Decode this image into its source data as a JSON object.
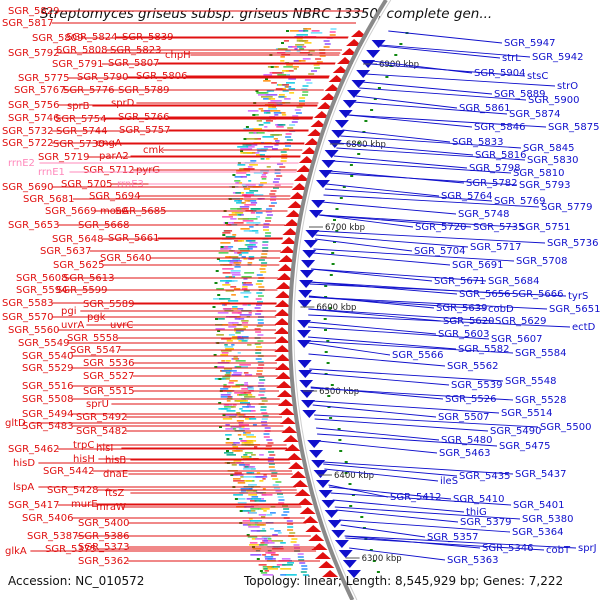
{
  "title": "Streptomyces griseus subsp. griseus NBRC 13350, complete gen...",
  "accession": "Accession: NC_010572",
  "topology": "Topology: linear; Length: 8,545,929 bp; Genes: 7,222",
  "colors": {
    "left": "#e01010",
    "right": "#1010cc",
    "rrna": "#ff88bb",
    "backbone": "#8a8a8a",
    "tick": "#118811"
  },
  "kbp_labels": [
    "6900 kbp",
    "6800 kbp",
    "6700 kbp",
    "6600 kbp",
    "6500 kbp",
    "6400 kbp",
    "6300 kbp"
  ],
  "left_labels": [
    [
      "SGR_5829",
      8,
      14,
      "n"
    ],
    [
      "SGR_5817",
      2,
      26,
      "n"
    ],
    [
      "SGR_5824",
      66,
      40,
      "n"
    ],
    [
      "SGR_5839",
      122,
      40,
      "n"
    ],
    [
      "SGR_5809",
      32,
      41,
      "n"
    ],
    [
      "SGR_5808",
      56,
      53,
      "n"
    ],
    [
      "SGR_5823",
      110,
      53,
      "n"
    ],
    [
      "SGR_5792",
      8,
      56,
      "n"
    ],
    [
      "chpH",
      165,
      58,
      "n"
    ],
    [
      "SGR_5791",
      52,
      67,
      "n"
    ],
    [
      "SGR_5807",
      108,
      66,
      "n"
    ],
    [
      "SGR_5806",
      136,
      79,
      "n"
    ],
    [
      "SGR_5775",
      18,
      81,
      "n"
    ],
    [
      "SGR_5790",
      77,
      80,
      "n"
    ],
    [
      "SGR_5767",
      14,
      93,
      "n"
    ],
    [
      "SGR_5776",
      63,
      93,
      "n"
    ],
    [
      "SGR_5789",
      118,
      93,
      "n"
    ],
    [
      "sprD",
      111,
      106,
      "n"
    ],
    [
      "SGR_5756",
      8,
      108,
      "n"
    ],
    [
      "sprB",
      67,
      109,
      "n"
    ],
    [
      "SGR_5754",
      55,
      122,
      "n"
    ],
    [
      "SGR_5766",
      118,
      120,
      "n"
    ],
    [
      "SGR_5746",
      8,
      121,
      "n"
    ],
    [
      "SGR_5757",
      119,
      133,
      "n"
    ],
    [
      "SGR_5732",
      2,
      134,
      "n"
    ],
    [
      "SGR_5744",
      56,
      134,
      "n"
    ],
    [
      "engA",
      96,
      146,
      "n"
    ],
    [
      "SGR_5730",
      53,
      147,
      "n"
    ],
    [
      "SGR_5722",
      2,
      146,
      "n"
    ],
    [
      "cmk",
      143,
      153,
      "n"
    ],
    [
      "parA2",
      99,
      159,
      "n"
    ],
    [
      "SGR_5719",
      38,
      160,
      "n"
    ],
    [
      "rrnE2",
      8,
      166,
      "r"
    ],
    [
      "SGR_5712",
      83,
      173,
      "n"
    ],
    [
      "pyrG",
      136,
      173,
      "n"
    ],
    [
      "rrnE1",
      38,
      175,
      "r"
    ],
    [
      "SGR_5705",
      61,
      187,
      "n"
    ],
    [
      "rrnE3",
      117,
      187,
      "r"
    ],
    [
      "SGR_5690",
      2,
      190,
      "n"
    ],
    [
      "SGR_5694",
      89,
      199,
      "n"
    ],
    [
      "SGR_5681",
      23,
      202,
      "n"
    ],
    [
      "SGR_5669",
      45,
      214,
      "n"
    ],
    [
      "moaA",
      100,
      214,
      "n"
    ],
    [
      "SGR_5685",
      115,
      214,
      "n"
    ],
    [
      "SGR_5653",
      8,
      228,
      "n"
    ],
    [
      "SGR_5668",
      78,
      228,
      "n"
    ],
    [
      "SGR_5661",
      108,
      241,
      "n"
    ],
    [
      "SGR_5648",
      52,
      242,
      "n"
    ],
    [
      "SGR_5637",
      40,
      254,
      "n"
    ],
    [
      "SGR_5640",
      100,
      261,
      "n"
    ],
    [
      "SGR_5625",
      53,
      268,
      "n"
    ],
    [
      "SGR_5608",
      16,
      281,
      "n"
    ],
    [
      "SGR_5613",
      63,
      281,
      "n"
    ],
    [
      "SGR_5594",
      16,
      293,
      "n"
    ],
    [
      "SGR_5599",
      56,
      293,
      "n"
    ],
    [
      "SGR_5583",
      2,
      306,
      "n"
    ],
    [
      "SGR_5589",
      83,
      307,
      "n"
    ],
    [
      "pgi",
      61,
      314,
      "n"
    ],
    [
      "SGR_5570",
      2,
      320,
      "n"
    ],
    [
      "pgk",
      87,
      320,
      "n"
    ],
    [
      "uvrA",
      61,
      328,
      "n"
    ],
    [
      "uvrC",
      110,
      328,
      "n"
    ],
    [
      "SGR_5560",
      8,
      333,
      "n"
    ],
    [
      "SGR_5558",
      67,
      341,
      "n"
    ],
    [
      "SGR_5549",
      18,
      346,
      "n"
    ],
    [
      "SGR_5547",
      70,
      353,
      "n"
    ],
    [
      "SGR_5540",
      22,
      359,
      "n"
    ],
    [
      "SGR_5536",
      83,
      366,
      "n"
    ],
    [
      "SGR_5529",
      22,
      371,
      "n"
    ],
    [
      "SGR_5527",
      83,
      379,
      "n"
    ],
    [
      "SGR_5516",
      22,
      389,
      "n"
    ],
    [
      "SGR_5515",
      83,
      394,
      "n"
    ],
    [
      "SGR_5508",
      22,
      402,
      "n"
    ],
    [
      "sprU",
      86,
      407,
      "n"
    ],
    [
      "SGR_5494",
      22,
      417,
      "n"
    ],
    [
      "SGR_5492",
      76,
      420,
      "n"
    ],
    [
      "gltD",
      5,
      426,
      "n"
    ],
    [
      "SGR_5483",
      22,
      429,
      "n"
    ],
    [
      "SGR_5482",
      76,
      434,
      "n"
    ],
    [
      "trpC",
      73,
      448,
      "n"
    ],
    [
      "hisI",
      96,
      451,
      "n"
    ],
    [
      "SGR_5462",
      8,
      452,
      "n"
    ],
    [
      "hisH",
      73,
      462,
      "n"
    ],
    [
      "hisB",
      105,
      463,
      "n"
    ],
    [
      "hisD",
      13,
      466,
      "n"
    ],
    [
      "SGR_5442",
      43,
      474,
      "n"
    ],
    [
      "dnaE",
      103,
      477,
      "n"
    ],
    [
      "lspA",
      13,
      490,
      "n"
    ],
    [
      "SGR_5428",
      47,
      493,
      "n"
    ],
    [
      "ftsZ",
      105,
      496,
      "n"
    ],
    [
      "SGR_5417",
      8,
      508,
      "n"
    ],
    [
      "murE",
      71,
      507,
      "n"
    ],
    [
      "mraW",
      96,
      510,
      "n"
    ],
    [
      "SGR_5406",
      22,
      521,
      "n"
    ],
    [
      "SGR_5400",
      78,
      526,
      "n"
    ],
    [
      "SGR_5387",
      27,
      539,
      "n"
    ],
    [
      "SGR_5386",
      78,
      539,
      "n"
    ],
    [
      "SGR_5375",
      45,
      552,
      "n"
    ],
    [
      "SGR_5373",
      78,
      550,
      "n"
    ],
    [
      "glkA",
      5,
      554,
      "n"
    ],
    [
      "SGR_5362",
      78,
      564,
      "n"
    ]
  ],
  "right_labels": [
    [
      "SGR_5947",
      504,
      46,
      "n"
    ],
    [
      "strL",
      502,
      61,
      "n"
    ],
    [
      "SGR_5942",
      532,
      60,
      "n"
    ],
    [
      "SGR_5904",
      474,
      76,
      "n"
    ],
    [
      "stsC",
      527,
      79,
      "n"
    ],
    [
      "strO",
      557,
      89,
      "n"
    ],
    [
      "SGR_5889",
      494,
      97,
      "n"
    ],
    [
      "SGR_5900",
      528,
      103,
      "n"
    ],
    [
      "SGR_5861",
      459,
      111,
      "n"
    ],
    [
      "SGR_5874",
      509,
      117,
      "n"
    ],
    [
      "SGR_5846",
      474,
      130,
      "n"
    ],
    [
      "SGR_5875",
      548,
      130,
      "n"
    ],
    [
      "SGR_5833",
      452,
      145,
      "n"
    ],
    [
      "SGR_5845",
      523,
      151,
      "n"
    ],
    [
      "SGR_5816",
      475,
      158,
      "n"
    ],
    [
      "SGR_5830",
      527,
      163,
      "n"
    ],
    [
      "SGR_5798",
      469,
      171,
      "n"
    ],
    [
      "SGR_5810",
      513,
      176,
      "n"
    ],
    [
      "SGR_5782",
      466,
      186,
      "n"
    ],
    [
      "SGR_5793",
      519,
      188,
      "n"
    ],
    [
      "SGR_5764",
      441,
      199,
      "n"
    ],
    [
      "SGR_5769",
      494,
      204,
      "n"
    ],
    [
      "SGR_5779",
      541,
      210,
      "n"
    ],
    [
      "SGR_5748",
      458,
      217,
      "n"
    ],
    [
      "SGR_5720",
      415,
      230,
      "n"
    ],
    [
      "SGR_5735",
      473,
      230,
      "n"
    ],
    [
      "SGR_5751",
      519,
      230,
      "n"
    ],
    [
      "SGR_5736",
      547,
      246,
      "n"
    ],
    [
      "SGR_5704",
      414,
      254,
      "n"
    ],
    [
      "SGR_5717",
      470,
      250,
      "n"
    ],
    [
      "SGR_5708",
      516,
      264,
      "n"
    ],
    [
      "SGR_5691",
      452,
      268,
      "n"
    ],
    [
      "SGR_5671",
      434,
      284,
      "n"
    ],
    [
      "SGR_5684",
      488,
      284,
      "n"
    ],
    [
      "SGR_5656",
      459,
      297,
      "n"
    ],
    [
      "SGR_5666",
      512,
      297,
      "n"
    ],
    [
      "tyrS",
      568,
      299,
      "n"
    ],
    [
      "SGR_5639",
      436,
      311,
      "n"
    ],
    [
      "cobD",
      488,
      312,
      "n"
    ],
    [
      "SGR_5651",
      549,
      312,
      "n"
    ],
    [
      "SGR_5620",
      443,
      324,
      "n"
    ],
    [
      "SGR_5629",
      495,
      324,
      "n"
    ],
    [
      "ectD",
      572,
      330,
      "n"
    ],
    [
      "SGR_5603",
      438,
      337,
      "n"
    ],
    [
      "SGR_5607",
      491,
      342,
      "n"
    ],
    [
      "SGR_5582",
      458,
      352,
      "n"
    ],
    [
      "SGR_5584",
      515,
      356,
      "n"
    ],
    [
      "SGR_5566",
      392,
      358,
      "n"
    ],
    [
      "SGR_5562",
      447,
      369,
      "n"
    ],
    [
      "SGR_5548",
      505,
      384,
      "n"
    ],
    [
      "SGR_5539",
      451,
      388,
      "n"
    ],
    [
      "SGR_5528",
      515,
      403,
      "n"
    ],
    [
      "SGR_5526",
      445,
      402,
      "n"
    ],
    [
      "SGR_5514",
      501,
      416,
      "n"
    ],
    [
      "SGR_5507",
      438,
      420,
      "n"
    ],
    [
      "SGR_5500",
      540,
      430,
      "n"
    ],
    [
      "SGR_5490",
      490,
      434,
      "n"
    ],
    [
      "SGR_5480",
      441,
      443,
      "n"
    ],
    [
      "SGR_5475",
      499,
      449,
      "n"
    ],
    [
      "SGR_5463",
      439,
      456,
      "n"
    ],
    [
      "SGR_5437",
      515,
      477,
      "n"
    ],
    [
      "SGR_5435",
      459,
      479,
      "n"
    ],
    [
      "ileS",
      440,
      484,
      "n"
    ],
    [
      "SGR_5412",
      390,
      500,
      "n"
    ],
    [
      "SGR_5410",
      453,
      502,
      "n"
    ],
    [
      "SGR_5401",
      513,
      508,
      "n"
    ],
    [
      "thiG",
      466,
      515,
      "n"
    ],
    [
      "SGR_5380",
      522,
      522,
      "n"
    ],
    [
      "SGR_5379",
      460,
      525,
      "n"
    ],
    [
      "SGR_5364",
      512,
      535,
      "n"
    ],
    [
      "SGR_5357",
      427,
      540,
      "n"
    ],
    [
      "SGR_5346",
      482,
      551,
      "n"
    ],
    [
      "cobT",
      546,
      553,
      "n"
    ],
    [
      "sprJ",
      578,
      551,
      "n"
    ],
    [
      "SGR_5363",
      447,
      563,
      "n"
    ]
  ]
}
